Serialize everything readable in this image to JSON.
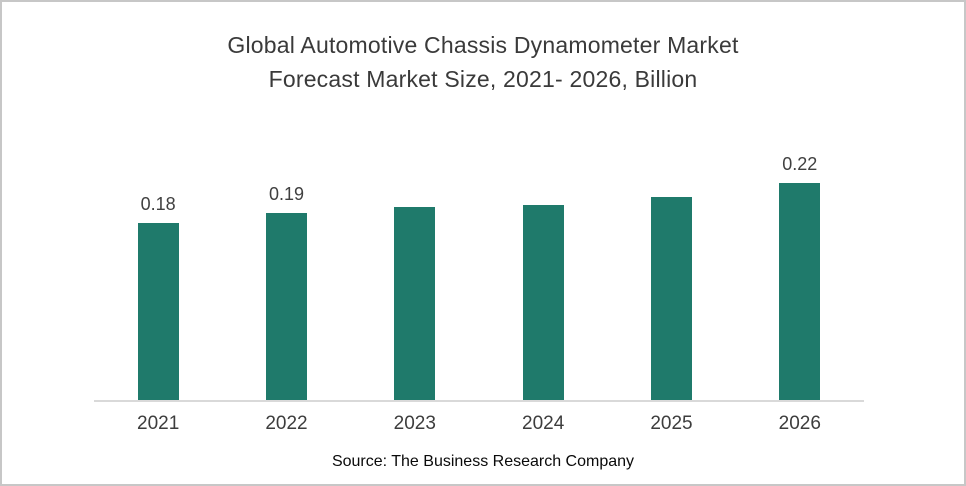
{
  "title": {
    "line1": "Global Automotive Chassis Dynamometer Market",
    "line2": "Forecast Market Size, 2021- 2026, Billion"
  },
  "source": "Source: The Business Research Company",
  "colors": {
    "bar": "#1f7a6b",
    "axis": "#d9d9d9",
    "title_text": "#3a3a3a",
    "label_text": "#404040",
    "frame_border": "#c7c7c7"
  },
  "chart_data": {
    "type": "bar",
    "title": "Global Automotive Chassis Dynamometer Market Forecast Market Size, 2021- 2026, Billion",
    "categories": [
      "2021",
      "2022",
      "2023",
      "2024",
      "2025",
      "2026"
    ],
    "values": [
      0.18,
      0.19,
      0.196,
      0.198,
      0.206,
      0.22
    ],
    "data_labels": [
      "0.18",
      "0.19",
      "",
      "",
      "",
      "0.22"
    ],
    "xlabel": "",
    "ylabel": "",
    "ylim": [
      0,
      0.26
    ],
    "grid": false,
    "legend": null,
    "bar_color": "#1f7a6b",
    "axis_color": "#d9d9d9",
    "source": "Source: The Business Research Company"
  }
}
